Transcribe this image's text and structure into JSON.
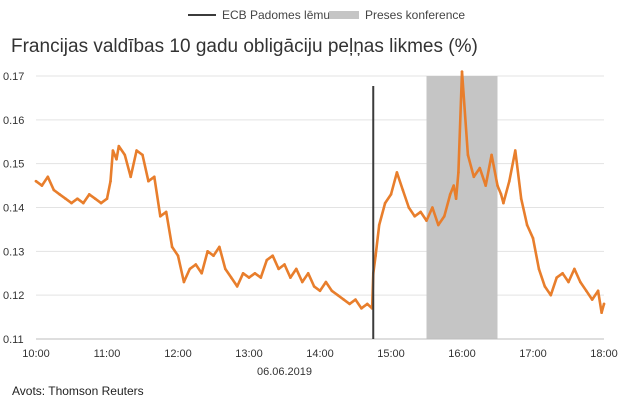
{
  "legend": {
    "decision_label": "ECB Padomes lēmums",
    "press_label": "Preses konference"
  },
  "title": "Francijas valdības 10 gadu obligāciju peļņas likmes (%)",
  "source": "Avots: Thomson Reuters",
  "colors": {
    "line": "#e87e2c",
    "band": "#c5c5c5",
    "marker": "#3b3b3b",
    "grid": "#e3e3e3"
  },
  "chart_data": {
    "type": "line",
    "xlabel": "06.06.2019",
    "ylabel": "",
    "x_ticks": [
      "10:00",
      "11:00",
      "12:00",
      "13:00",
      "14:00",
      "15:00",
      "16:00",
      "17:00",
      "18:00"
    ],
    "y_ticks": [
      "0.11",
      "0.12",
      "0.13",
      "0.14",
      "0.15",
      "0.16",
      "0.17"
    ],
    "xlim": [
      "10:00",
      "18:00"
    ],
    "ylim": [
      0.11,
      0.17
    ],
    "grid": "horizontal",
    "legend_position": "top",
    "annotations": {
      "decision_time": "14:45",
      "press_conference": [
        "15:30",
        "16:30"
      ]
    },
    "series": [
      {
        "name": "",
        "x": [
          "10:00",
          "10:05",
          "10:10",
          "10:15",
          "10:20",
          "10:25",
          "10:30",
          "10:35",
          "10:40",
          "10:45",
          "10:50",
          "10:55",
          "11:00",
          "11:03",
          "11:05",
          "11:08",
          "11:10",
          "11:15",
          "11:20",
          "11:25",
          "11:30",
          "11:35",
          "11:40",
          "11:45",
          "11:50",
          "11:55",
          "12:00",
          "12:05",
          "12:10",
          "12:15",
          "12:20",
          "12:25",
          "12:30",
          "12:35",
          "12:40",
          "12:45",
          "12:50",
          "12:55",
          "13:00",
          "13:05",
          "13:10",
          "13:15",
          "13:20",
          "13:25",
          "13:30",
          "13:35",
          "13:40",
          "13:45",
          "13:50",
          "13:55",
          "14:00",
          "14:05",
          "14:10",
          "14:15",
          "14:20",
          "14:25",
          "14:30",
          "14:35",
          "14:40",
          "14:44",
          "14:45",
          "14:47",
          "14:50",
          "14:55",
          "15:00",
          "15:05",
          "15:10",
          "15:15",
          "15:20",
          "15:25",
          "15:30",
          "15:35",
          "15:40",
          "15:45",
          "15:50",
          "15:53",
          "15:55",
          "15:57",
          "16:00",
          "16:05",
          "16:10",
          "16:15",
          "16:20",
          "16:25",
          "16:30",
          "16:33",
          "16:35",
          "16:40",
          "16:45",
          "16:50",
          "16:55",
          "17:00",
          "17:05",
          "17:10",
          "17:15",
          "17:20",
          "17:25",
          "17:30",
          "17:35",
          "17:40",
          "17:45",
          "17:50",
          "17:55",
          "17:58",
          "18:00"
        ],
        "values": [
          0.146,
          0.145,
          0.147,
          0.144,
          0.143,
          0.142,
          0.141,
          0.142,
          0.141,
          0.143,
          0.142,
          0.141,
          0.142,
          0.146,
          0.153,
          0.151,
          0.154,
          0.152,
          0.147,
          0.153,
          0.152,
          0.146,
          0.147,
          0.138,
          0.139,
          0.131,
          0.129,
          0.123,
          0.126,
          0.127,
          0.125,
          0.13,
          0.129,
          0.131,
          0.126,
          0.124,
          0.122,
          0.125,
          0.124,
          0.125,
          0.124,
          0.128,
          0.129,
          0.126,
          0.127,
          0.124,
          0.126,
          0.123,
          0.125,
          0.122,
          0.121,
          0.123,
          0.121,
          0.12,
          0.119,
          0.118,
          0.119,
          0.117,
          0.118,
          0.117,
          0.125,
          0.129,
          0.136,
          0.141,
          0.143,
          0.148,
          0.144,
          0.14,
          0.138,
          0.139,
          0.137,
          0.14,
          0.136,
          0.138,
          0.143,
          0.145,
          0.142,
          0.148,
          0.171,
          0.152,
          0.147,
          0.149,
          0.145,
          0.152,
          0.145,
          0.143,
          0.141,
          0.146,
          0.153,
          0.142,
          0.136,
          0.133,
          0.126,
          0.122,
          0.12,
          0.124,
          0.125,
          0.123,
          0.126,
          0.123,
          0.121,
          0.119,
          0.121,
          0.116,
          0.118
        ]
      }
    ]
  }
}
